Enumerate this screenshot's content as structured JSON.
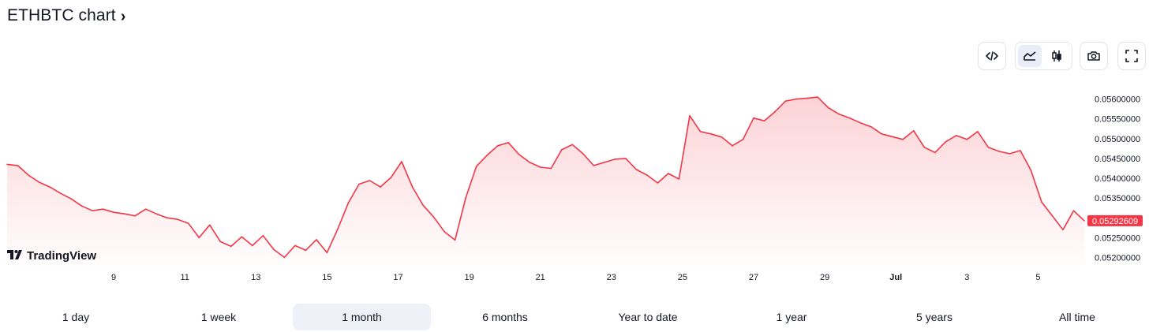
{
  "header": {
    "title": "ETHBTC chart",
    "chevron": "›"
  },
  "toolbar": {
    "embed_icon": "code-embed-icon",
    "line_icon": "line-chart-icon",
    "candle_icon": "candlestick-icon",
    "camera_icon": "camera-icon",
    "fullscreen_icon": "fullscreen-icon"
  },
  "watermark": {
    "text": "TradingView"
  },
  "ranges": [
    {
      "label": "1 day",
      "active": false
    },
    {
      "label": "1 week",
      "active": false
    },
    {
      "label": "1 month",
      "active": true
    },
    {
      "label": "6 months",
      "active": false
    },
    {
      "label": "Year to date",
      "active": false
    },
    {
      "label": "1 year",
      "active": false
    },
    {
      "label": "5 years",
      "active": false
    },
    {
      "label": "All time",
      "active": false
    }
  ],
  "colors": {
    "line": "#f23645",
    "accent": "#f23645",
    "text": "#131722"
  },
  "chart_data": {
    "type": "area",
    "title": "",
    "symbol": "ETHBTC",
    "x_ticks": [
      {
        "label": "9",
        "day": 9
      },
      {
        "label": "11",
        "day": 11
      },
      {
        "label": "13",
        "day": 13
      },
      {
        "label": "15",
        "day": 15
      },
      {
        "label": "17",
        "day": 17
      },
      {
        "label": "19",
        "day": 19
      },
      {
        "label": "21",
        "day": 21
      },
      {
        "label": "23",
        "day": 23
      },
      {
        "label": "25",
        "day": 25
      },
      {
        "label": "27",
        "day": 27
      },
      {
        "label": "29",
        "day": 29
      },
      {
        "label": "Jul",
        "day": 31,
        "bold": true
      },
      {
        "label": "3",
        "day": 33
      },
      {
        "label": "5",
        "day": 35
      }
    ],
    "y_ticks": [
      "0.05600000",
      "0.05550000",
      "0.05500000",
      "0.05450000",
      "0.05400000",
      "0.05350000",
      "0.05250000",
      "0.05200000"
    ],
    "y_tick_values": [
      0.056,
      0.0555,
      0.055,
      0.0545,
      0.054,
      0.0535,
      0.0525,
      0.052
    ],
    "ylim": [
      0.05177,
      0.05635
    ],
    "last_price_label": "0.05292609",
    "last_price": 0.05292609,
    "x": [
      6.0,
      6.3,
      6.6,
      6.9,
      7.2,
      7.5,
      7.8,
      8.1,
      8.4,
      8.7,
      9.0,
      9.3,
      9.6,
      9.9,
      10.2,
      10.5,
      10.8,
      11.1,
      11.4,
      11.7,
      12.0,
      12.3,
      12.6,
      12.9,
      13.2,
      13.5,
      13.8,
      14.1,
      14.4,
      14.7,
      15.0,
      15.3,
      15.6,
      15.9,
      16.2,
      16.5,
      16.8,
      17.1,
      17.4,
      17.7,
      18.0,
      18.3,
      18.6,
      18.9,
      19.2,
      19.5,
      19.8,
      20.1,
      20.4,
      20.7,
      21.0,
      21.3,
      21.6,
      21.9,
      22.2,
      22.5,
      22.8,
      23.1,
      23.4,
      23.7,
      24.0,
      24.3,
      24.6,
      24.9,
      25.2,
      25.5,
      25.8,
      26.1,
      26.4,
      26.7,
      27.0,
      27.3,
      27.6,
      27.9,
      28.2,
      28.5,
      28.8,
      29.1,
      29.4,
      29.7,
      30.0,
      30.3,
      30.6,
      30.9,
      31.2,
      31.5,
      31.8,
      32.1,
      32.4,
      32.7,
      33.0,
      33.3,
      33.6,
      33.9,
      34.2,
      34.5,
      34.8,
      35.1,
      35.4,
      35.7,
      36.0,
      36.3
    ],
    "values": [
      0.05435,
      0.05432,
      0.05408,
      0.0539,
      0.05378,
      0.05362,
      0.05348,
      0.0533,
      0.05318,
      0.05322,
      0.05314,
      0.0531,
      0.05305,
      0.05322,
      0.0531,
      0.053,
      0.05296,
      0.05286,
      0.0525,
      0.05282,
      0.0524,
      0.05228,
      0.05252,
      0.0523,
      0.05255,
      0.0522,
      0.052,
      0.0523,
      0.05218,
      0.05245,
      0.05212,
      0.05272,
      0.05338,
      0.05385,
      0.05394,
      0.05378,
      0.05402,
      0.05442,
      0.05378,
      0.05332,
      0.05302,
      0.05265,
      0.05244,
      0.0535,
      0.0543,
      0.05458,
      0.05482,
      0.0549,
      0.0546,
      0.0544,
      0.05428,
      0.05425,
      0.05472,
      0.05485,
      0.05462,
      0.05432,
      0.0544,
      0.05448,
      0.0545,
      0.05422,
      0.05408,
      0.05388,
      0.05412,
      0.05398,
      0.05558,
      0.05518,
      0.05512,
      0.05504,
      0.05482,
      0.05498,
      0.05552,
      0.05545,
      0.05568,
      0.05595,
      0.056,
      0.05602,
      0.05605,
      0.05578,
      0.05562,
      0.05552,
      0.0554,
      0.0553,
      0.05512,
      0.05505,
      0.05498,
      0.0552,
      0.05478,
      0.05465,
      0.05492,
      0.05508,
      0.05498,
      0.05518,
      0.05478,
      0.05468,
      0.05462,
      0.0547,
      0.0542,
      0.0534,
      0.05305,
      0.0527,
      0.05318,
      0.05292609
    ]
  }
}
